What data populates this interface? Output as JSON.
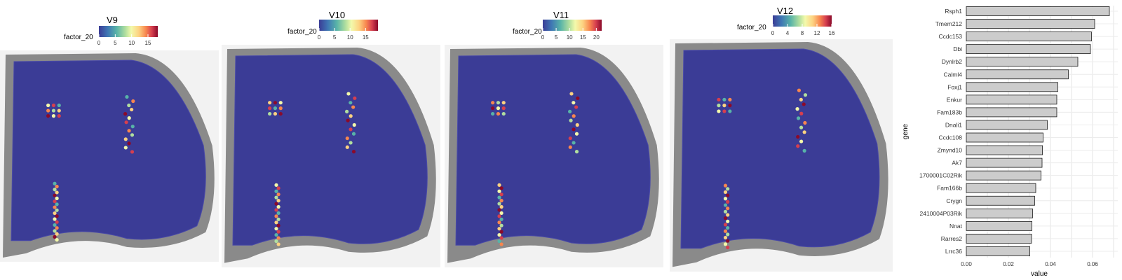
{
  "colors": {
    "spectral_low": "#3b3c96",
    "spectral_mid": "#f3f9ab",
    "spectral_high": "#8b0a2a",
    "tissue": "#6e6e6e",
    "bar_fill": "#cccccc",
    "bar_stroke": "#1a1a1a"
  },
  "chart_data": [
    {
      "type": "heatmap",
      "title": "V9",
      "legend_title": "factor_20",
      "color_scale": "spectral (reversed)",
      "scale_ticks": [
        "0",
        "5",
        "10",
        "15"
      ],
      "scale_max": 18,
      "hotspots": [
        "left ventricle cluster",
        "right ventricle cluster",
        "central canal line"
      ]
    },
    {
      "type": "heatmap",
      "title": "V10",
      "legend_title": "factor_20",
      "color_scale": "spectral (reversed)",
      "scale_ticks": [
        "0",
        "5",
        "10",
        "15"
      ],
      "scale_max": 19
    },
    {
      "type": "heatmap",
      "title": "V11",
      "legend_title": "factor_20",
      "color_scale": "spectral (reversed)",
      "scale_ticks": [
        "0",
        "5",
        "10",
        "15",
        "20"
      ],
      "scale_max": 22
    },
    {
      "type": "heatmap",
      "title": "V12",
      "legend_title": "factor_20",
      "color_scale": "spectral (reversed)",
      "scale_ticks": [
        "0",
        "4",
        "8",
        "12",
        "16"
      ],
      "scale_max": 16
    },
    {
      "type": "bar",
      "orientation": "horizontal",
      "xlabel": "value",
      "ylabel": "gene",
      "xlim": [
        0,
        0.072
      ],
      "x_ticks": [
        "0.00",
        "0.02",
        "0.04",
        "0.06"
      ],
      "grid": true,
      "categories": [
        "Rsph1",
        "Tmem212",
        "Ccdc153",
        "Dbi",
        "Dynlrb2",
        "Calml4",
        "Foxj1",
        "Enkur",
        "Fam183b",
        "Dnali1",
        "Ccdc108",
        "Zmynd10",
        "Ak7",
        "1700001C02Rik",
        "Fam166b",
        "Crygn",
        "2410004P03Rik",
        "Nnat",
        "Rarres2",
        "Lrrc36"
      ],
      "values": [
        0.068,
        0.061,
        0.0595,
        0.059,
        0.053,
        0.0485,
        0.0435,
        0.043,
        0.043,
        0.0385,
        0.0365,
        0.0362,
        0.036,
        0.0355,
        0.033,
        0.0325,
        0.0315,
        0.0312,
        0.031,
        0.0302
      ]
    }
  ]
}
